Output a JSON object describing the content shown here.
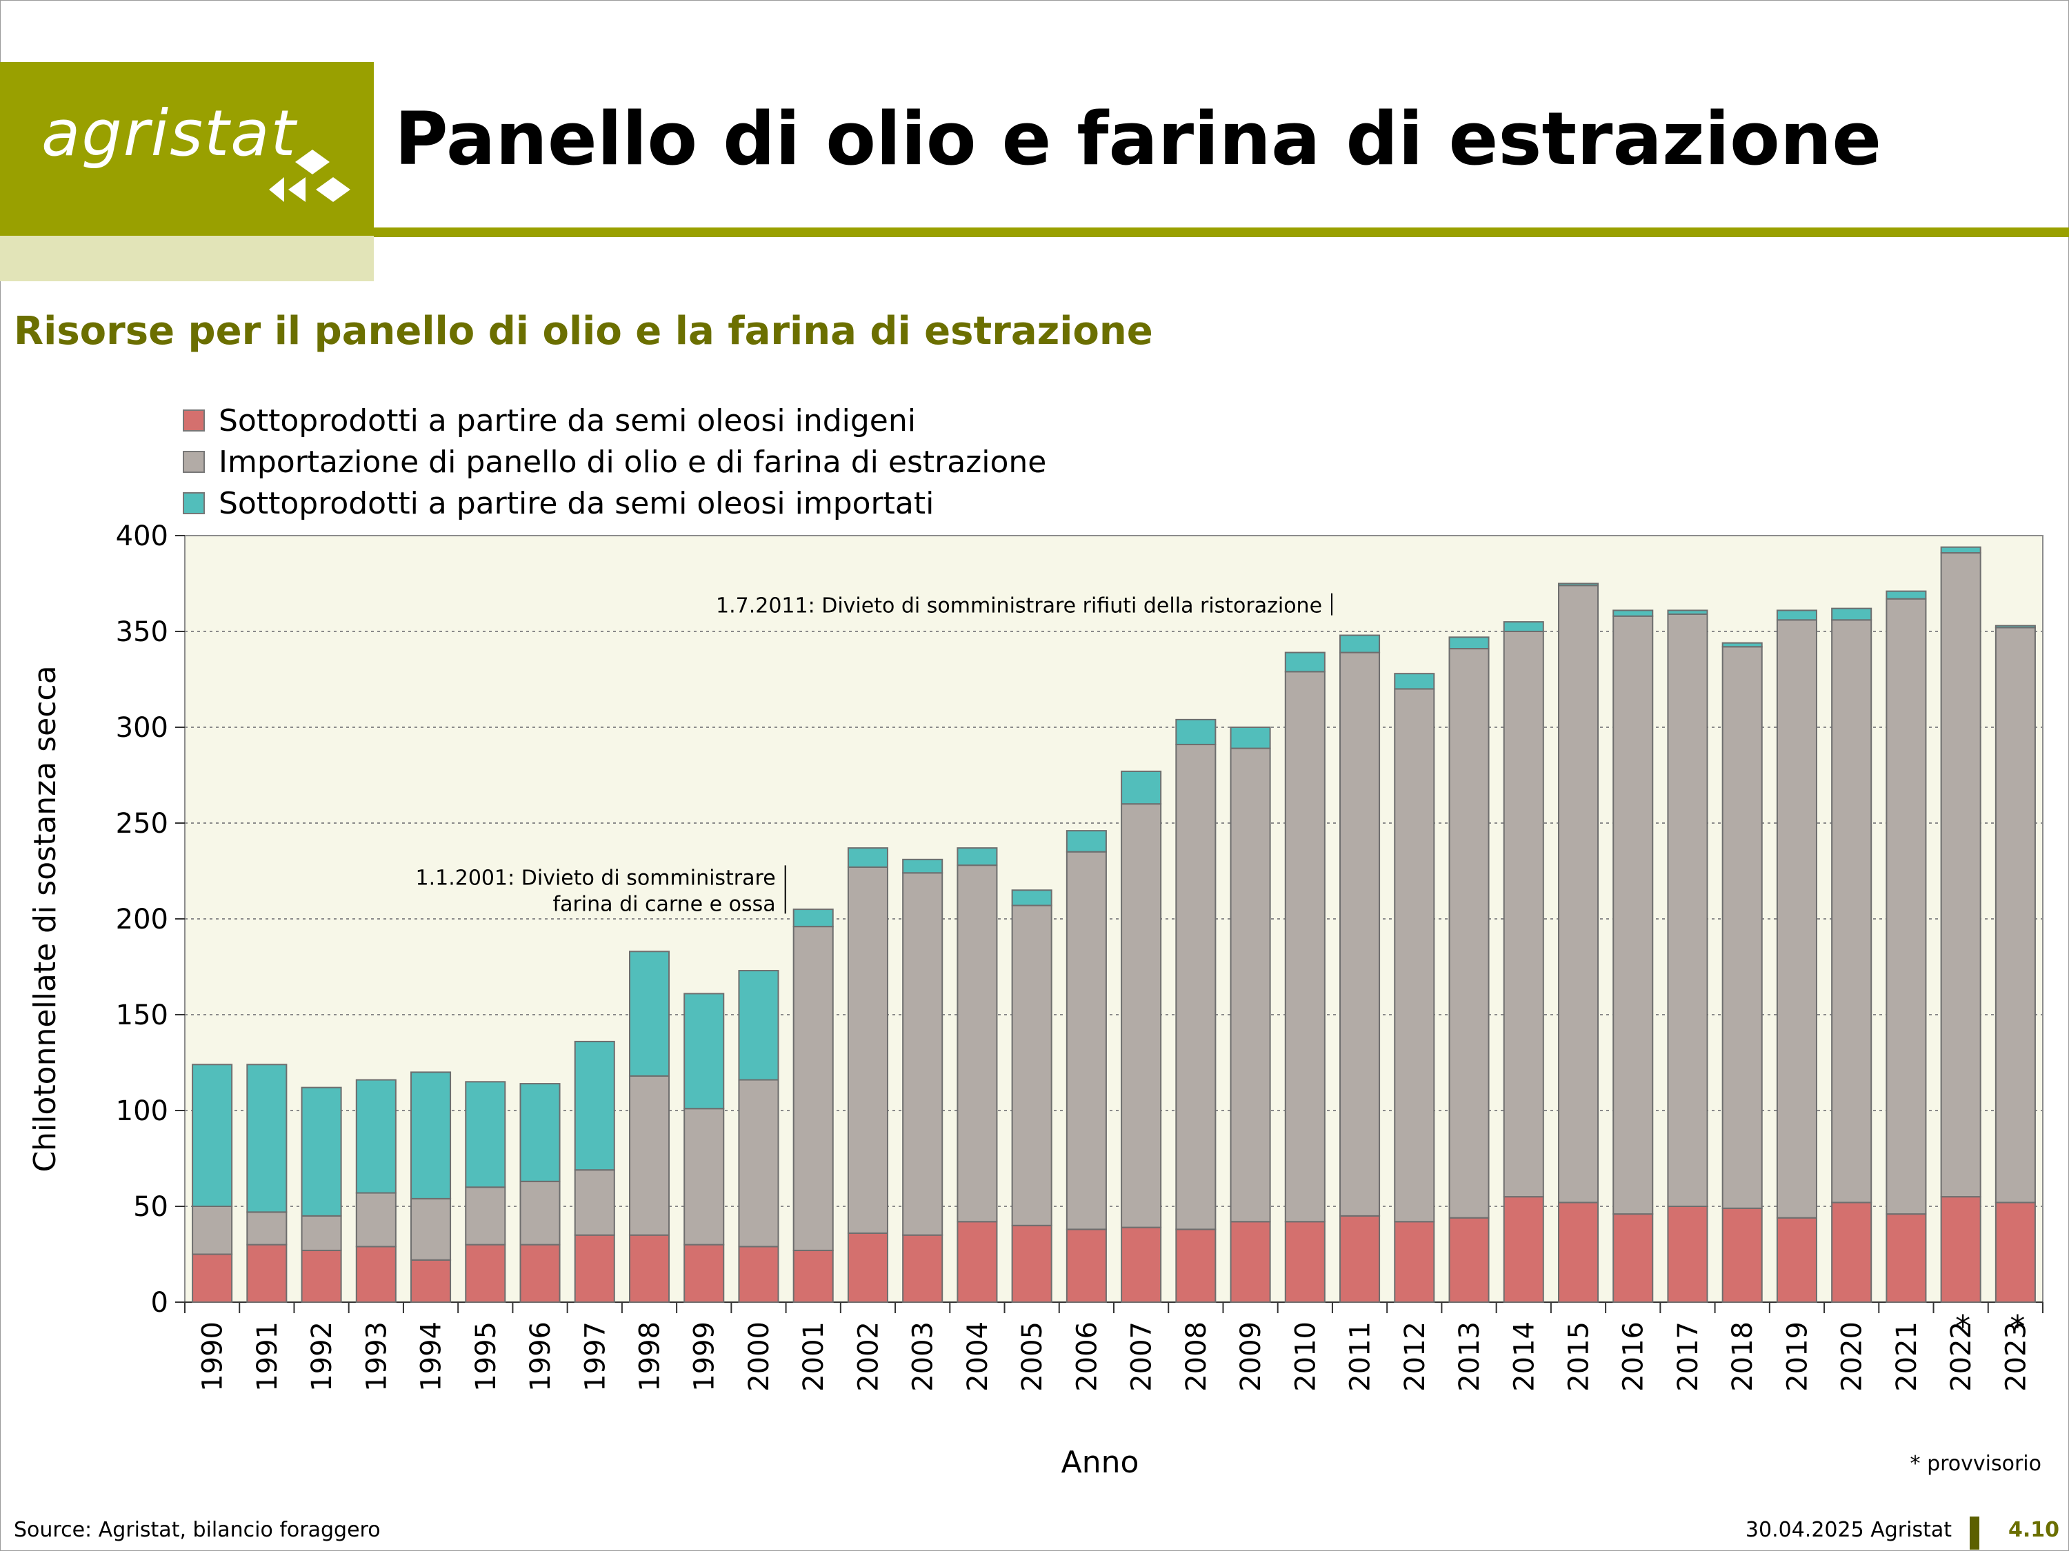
{
  "header": {
    "logo_text": "agristat",
    "page_title": "Panello di olio e farina di estrazione"
  },
  "subtitle": "Risorse per il panello di olio e la farina di estrazione",
  "legend": [
    {
      "label": "Sottoprodotti a partire da semi oleosi indigeni",
      "color": "#d4706e"
    },
    {
      "label": "Importazione di panello di olio e di farina di estrazione",
      "color": "#b2aba6"
    },
    {
      "label": "Sottoprodotti a partire da semi oleosi importati",
      "color": "#52bebb"
    }
  ],
  "colors": {
    "plot_background": "#f7f7e8",
    "grid": "#8a8a8a",
    "brand_green": "#99a000",
    "subtitle": "#6b6f00"
  },
  "chart_data": {
    "type": "bar",
    "stacked": true,
    "xlabel": "Anno",
    "ylabel": "Chilotonnellate di sostanza secca",
    "ylim": [
      0,
      400
    ],
    "yticks": [
      0,
      50,
      100,
      150,
      200,
      250,
      300,
      350,
      400
    ],
    "grid": "horizontal dotted",
    "legend_position": "top-left",
    "categories": [
      "1990",
      "1991",
      "1992",
      "1993",
      "1994",
      "1995",
      "1996",
      "1997",
      "1998",
      "1999",
      "2000",
      "2001",
      "2002",
      "2003",
      "2004",
      "2005",
      "2006",
      "2007",
      "2008",
      "2009",
      "2010",
      "2011",
      "2012",
      "2013",
      "2014",
      "2015",
      "2016",
      "2017",
      "2018",
      "2019",
      "2020",
      "2021",
      "2022",
      "2023"
    ],
    "provisional_marks": [
      "",
      "",
      "",
      "",
      "",
      "",
      "",
      "",
      "",
      "",
      "",
      "",
      "",
      "",
      "",
      "",
      "",
      "",
      "",
      "",
      "",
      "",
      "",
      "",
      "",
      "",
      "",
      "",
      "",
      "",
      "",
      "",
      "*",
      "*"
    ],
    "series": [
      {
        "name": "Sottoprodotti a partire da semi oleosi indigeni",
        "values": [
          25,
          30,
          27,
          29,
          22,
          30,
          30,
          35,
          35,
          30,
          29,
          27,
          36,
          35,
          42,
          40,
          38,
          39,
          38,
          42,
          42,
          45,
          42,
          44,
          55,
          52,
          46,
          50,
          49,
          44,
          52,
          46,
          55,
          52
        ]
      },
      {
        "name": "Importazione di panello di olio e di farina di estrazione",
        "values": [
          25,
          17,
          18,
          28,
          32,
          30,
          33,
          34,
          83,
          71,
          87,
          169,
          191,
          189,
          186,
          167,
          197,
          221,
          253,
          247,
          287,
          294,
          278,
          297,
          295,
          322,
          312,
          309,
          293,
          312,
          304,
          321,
          336,
          300
        ]
      },
      {
        "name": "Sottoprodotti a partire da semi oleosi importati",
        "values": [
          74,
          77,
          67,
          59,
          66,
          55,
          51,
          67,
          65,
          60,
          57,
          9,
          10,
          7,
          9,
          8,
          11,
          17,
          13,
          11,
          10,
          9,
          8,
          6,
          5,
          1,
          3,
          2,
          2,
          5,
          6,
          4,
          3,
          1
        ]
      }
    ],
    "annotations": [
      {
        "text_lines": [
          "1.1.2001: Divieto di somministrare",
          "farina di carne e ossa"
        ],
        "at_category": "2001",
        "y": 220
      },
      {
        "text_lines": [
          "1.7.2011: Divieto di somministrare rifiuti della ristorazione"
        ],
        "at_category": "2011",
        "y": 362
      }
    ]
  },
  "footnote": "* provvisorio",
  "footer": {
    "source": "Source: Agristat, bilancio foraggero",
    "date": "30.04.2025 Agristat",
    "page_number": "4.10"
  }
}
